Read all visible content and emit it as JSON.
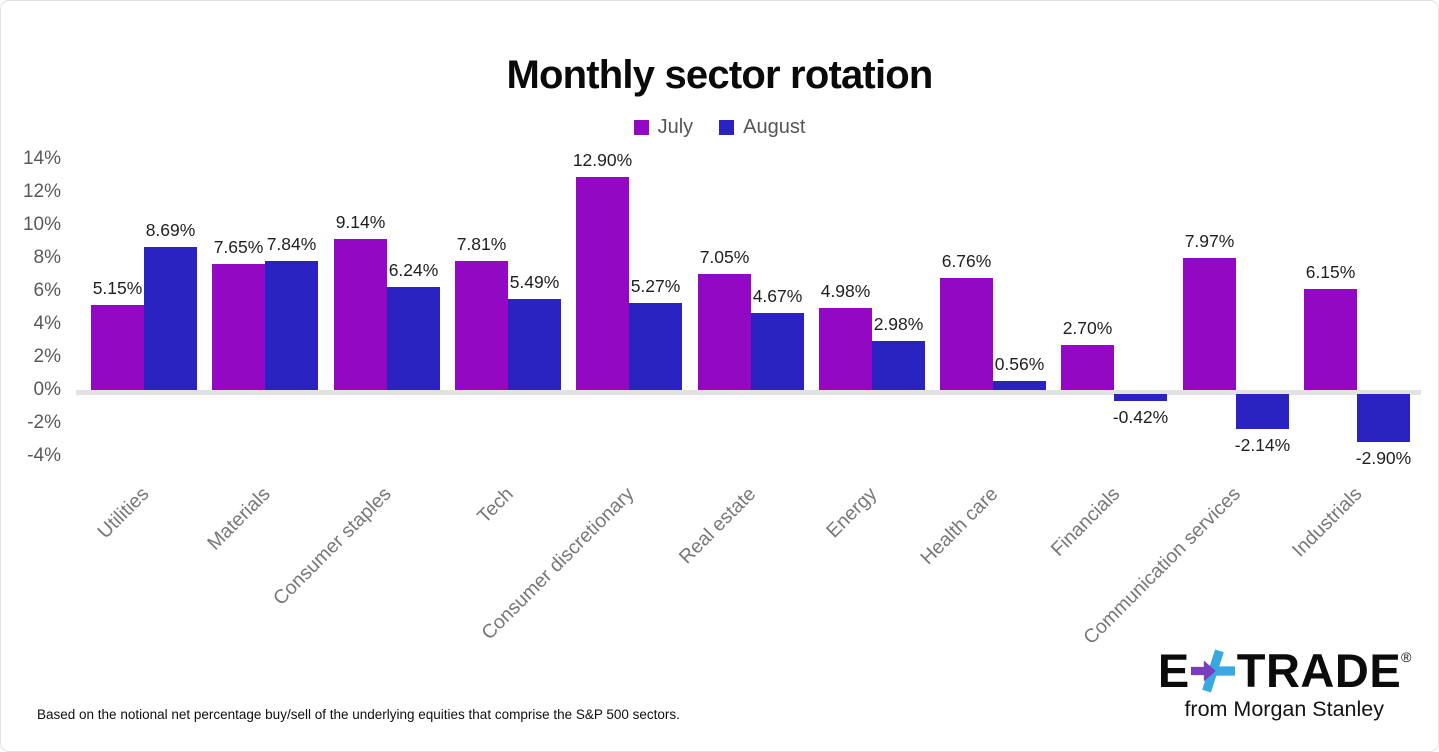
{
  "chart_data": {
    "type": "bar",
    "title": "Monthly sector rotation",
    "categories": [
      "Utilities",
      "Materials",
      "Consumer staples",
      "Tech",
      "Consumer discretionary",
      "Real estate",
      "Energy",
      "Health care",
      "Financials",
      "Communication services",
      "Industrials"
    ],
    "series": [
      {
        "name": "July",
        "color": "#9309c3",
        "values": [
          5.15,
          7.65,
          9.14,
          7.81,
          12.9,
          7.05,
          4.98,
          6.76,
          2.7,
          7.97,
          6.15
        ],
        "labels": [
          "5.15%",
          "7.65%",
          "9.14%",
          "7.81%",
          "12.90%",
          "7.05%",
          "4.98%",
          "6.76%",
          "2.70%",
          "7.97%",
          "6.15%"
        ]
      },
      {
        "name": "August",
        "color": "#2b22c2",
        "values": [
          8.69,
          7.84,
          6.24,
          5.49,
          5.27,
          4.67,
          2.98,
          0.56,
          -0.42,
          -2.14,
          -2.9
        ],
        "labels": [
          "8.69%",
          "7.84%",
          "6.24%",
          "5.49%",
          "5.27%",
          "4.67%",
          "2.98%",
          "0.56%",
          "-0.42%",
          "-2.14%",
          "-2.90%"
        ]
      }
    ],
    "y_ticks": [
      14,
      12,
      10,
      8,
      6,
      4,
      2,
      0,
      -2,
      -4
    ],
    "y_tick_labels": [
      "14%",
      "12%",
      "10%",
      "8%",
      "6%",
      "4%",
      "2%",
      "0%",
      "-2%",
      "-4%"
    ],
    "ylim": [
      -4,
      14
    ],
    "grid": false,
    "legend_position": "top"
  },
  "footnote": "Based on the notional net percentage buy/sell of the underlying equities that comprise the S&P 500 sectors.",
  "logo": {
    "text_e": "E",
    "text_trade": "TRADE",
    "registered": "®",
    "tagline": "from Morgan Stanley",
    "star_purple": "#7a3dbe",
    "star_cyan": "#39a8e0"
  }
}
